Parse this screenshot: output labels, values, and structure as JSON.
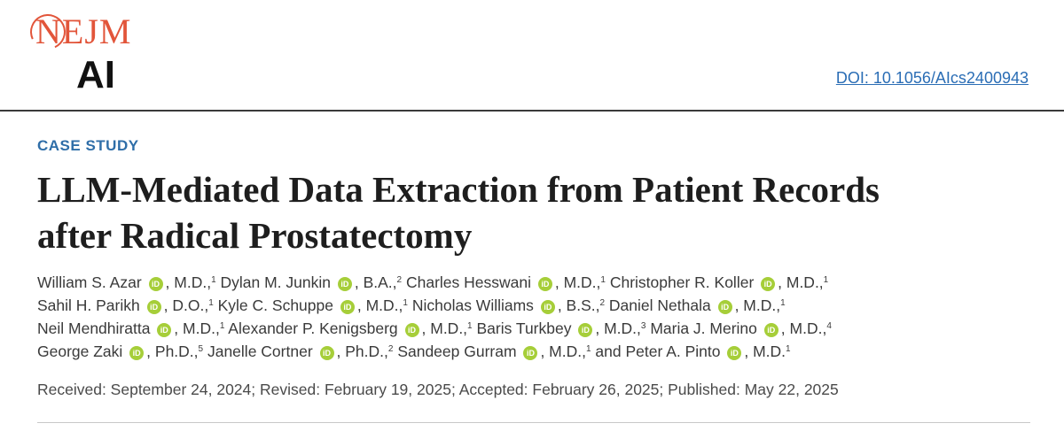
{
  "header": {
    "logo_top": "NEJM",
    "logo_bottom": "AI",
    "doi": "DOI: 10.1056/AIcs2400943"
  },
  "article": {
    "category": "CASE STUDY",
    "title_line1": "LLM-Mediated Data Extraction from Patient Records",
    "title_line2": "after Radical Prostatectomy",
    "orcid_icon_text": "iD",
    "authors": [
      [
        {
          "name": "William S. Azar",
          "suffix": ", M.D.,",
          "aff": "1"
        },
        {
          "name": "Dylan M. Junkin",
          "suffix": ", B.A.,",
          "aff": "2"
        },
        {
          "name": "Charles Hesswani",
          "suffix": ", M.D.,",
          "aff": "1"
        },
        {
          "name": "Christopher R. Koller",
          "suffix": ", M.D.,",
          "aff": "1"
        }
      ],
      [
        {
          "name": "Sahil H. Parikh",
          "suffix": ", D.O.,",
          "aff": "1"
        },
        {
          "name": "Kyle C. Schuppe",
          "suffix": ", M.D.,",
          "aff": "1"
        },
        {
          "name": "Nicholas Williams",
          "suffix": ", B.S.,",
          "aff": "2"
        },
        {
          "name": "Daniel Nethala",
          "suffix": ", M.D.,",
          "aff": "1"
        }
      ],
      [
        {
          "name": "Neil Mendhiratta",
          "suffix": ", M.D.,",
          "aff": "1"
        },
        {
          "name": "Alexander P. Kenigsberg",
          "suffix": ", M.D.,",
          "aff": "1"
        },
        {
          "name": "Baris Turkbey",
          "suffix": ", M.D.,",
          "aff": "3"
        },
        {
          "name": "Maria J. Merino",
          "suffix": ", M.D.,",
          "aff": "4"
        }
      ],
      [
        {
          "name": "George Zaki",
          "suffix": ", Ph.D.,",
          "aff": "5"
        },
        {
          "name": "Janelle Cortner",
          "suffix": ", Ph.D.,",
          "aff": "2"
        },
        {
          "name": "Sandeep Gurram",
          "suffix": ", M.D.,",
          "aff": "1",
          "after": " and"
        },
        {
          "name": "Peter A. Pinto",
          "suffix": ", M.D.",
          "aff": "1"
        }
      ]
    ],
    "dates": "Received: September 24, 2024; Revised: February 19, 2025; Accepted: February 26, 2025; Published: May 22, 2025"
  }
}
